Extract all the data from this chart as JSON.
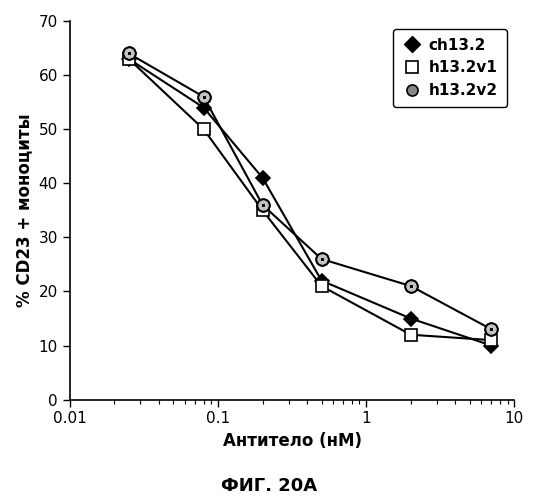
{
  "xlabel": "Антитело (нМ)",
  "ylabel": "% CD23 + моноциты",
  "fig_caption": "ФИГ. 20A",
  "xlim": [
    0.01,
    10
  ],
  "ylim": [
    0,
    70
  ],
  "yticks": [
    0,
    10,
    20,
    30,
    40,
    50,
    60,
    70
  ],
  "xticks": [
    0.01,
    0.1,
    1,
    10
  ],
  "xticklabels": [
    "0.01",
    "0.1",
    "1",
    "10"
  ],
  "series": {
    "ch13.2": {
      "x": [
        0.025,
        0.08,
        0.2,
        0.5,
        2.0,
        7.0
      ],
      "y": [
        63,
        54,
        41,
        22,
        15,
        10
      ],
      "color": "#000000",
      "marker": "D",
      "markersize": 7,
      "markerfacecolor": "#000000",
      "label": "ch13.2"
    },
    "h13.2v1": {
      "x": [
        0.025,
        0.08,
        0.2,
        0.5,
        2.0,
        7.0
      ],
      "y": [
        63,
        50,
        35,
        21,
        12,
        11
      ],
      "color": "#000000",
      "marker": "s",
      "markersize": 8,
      "markerfacecolor": "#ffffff",
      "label": "h13.2v1"
    },
    "h13.2v2": {
      "x": [
        0.025,
        0.08,
        0.2,
        0.5,
        2.0,
        7.0
      ],
      "y": [
        64,
        56,
        36,
        26,
        21,
        13
      ],
      "color": "#000000",
      "marker": "o",
      "markersize": 9,
      "label": "h13.2v2"
    }
  },
  "legend_loc": "upper right",
  "background_color": "#ffffff",
  "linewidth": 1.5,
  "label_fontsize": 12,
  "tick_fontsize": 11,
  "legend_fontsize": 11,
  "caption_fontsize": 13
}
